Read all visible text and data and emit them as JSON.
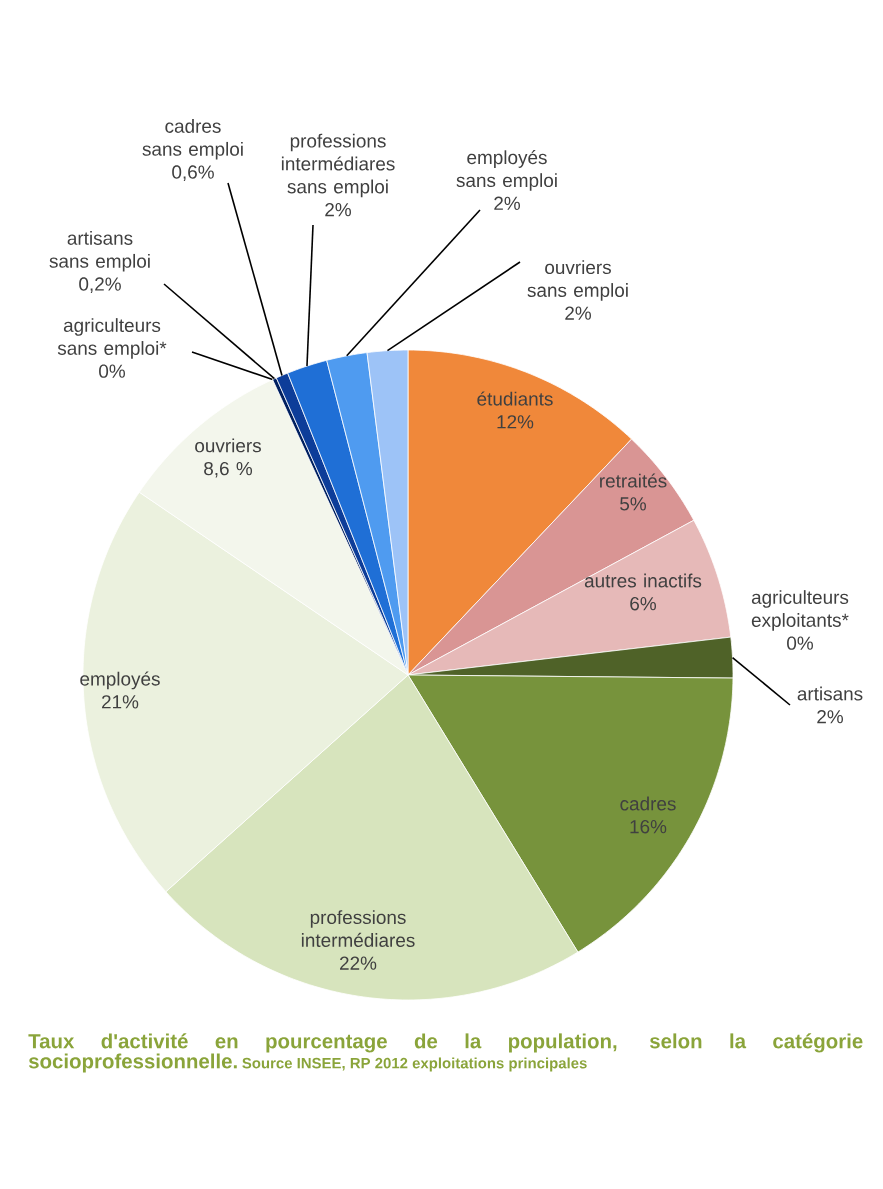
{
  "chart_data": {
    "type": "pie",
    "title": "Taux d'activité en pourcentage de la population, selon la catégorie socioprofessionnelle.",
    "annotations": [
      "Source INSEE, RP 2012 exploitations principales"
    ],
    "categories": [
      "étudiants",
      "retraités",
      "autres inactifs",
      "agriculteurs exploitants*",
      "artisans",
      "cadres",
      "professions intermédiares",
      "employés",
      "ouvriers",
      "agriculteurs sans emploi*",
      "artisans sans emploi",
      "cadres sans emploi",
      "professions intermédiares sans emploi",
      "employés sans emploi",
      "ouvriers sans emploi"
    ],
    "values": [
      12,
      5,
      6,
      0,
      2,
      16,
      22,
      21,
      8.6,
      0,
      0.2,
      0.6,
      2,
      2,
      2
    ],
    "value_labels": [
      "12%",
      "5%",
      "6%",
      "0%",
      "2%",
      "16%",
      "22%",
      "21%",
      "8,6 %",
      "0%",
      "0,2%",
      "0,6%",
      "2%",
      "2%",
      "2%"
    ],
    "colors": [
      "#f0883a",
      "#d99594",
      "#e6b9b8",
      "#4f6228",
      "#4f6228",
      "#77933c",
      "#d7e4bd",
      "#ebf1de",
      "#f3f6ec",
      "#002060",
      "#002060",
      "#0d3d99",
      "#1f6fd6",
      "#4f9bf0",
      "#9dc3f7"
    ]
  }
}
